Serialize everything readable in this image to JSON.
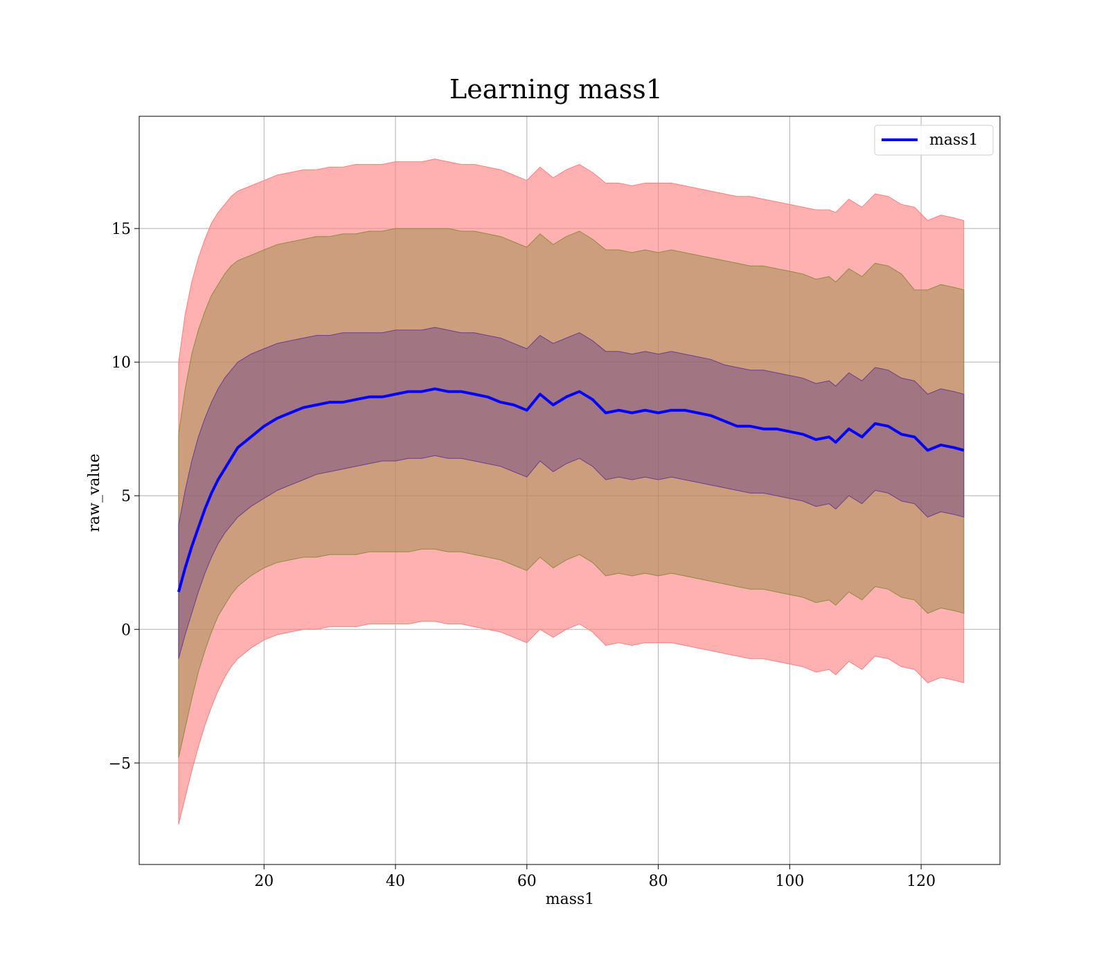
{
  "chart_data": {
    "type": "area",
    "title": "Learning mass1",
    "xlabel": "mass1",
    "ylabel": "raw_value",
    "xlim": [
      1,
      132
    ],
    "ylim": [
      -8.8,
      19.2
    ],
    "xticks": [
      20,
      40,
      60,
      80,
      100,
      120
    ],
    "yticks": [
      -5,
      0,
      5,
      10,
      15
    ],
    "ytick_labels": [
      "−5",
      "0",
      "5",
      "10",
      "15"
    ],
    "grid": true,
    "legend": {
      "position": "upper right",
      "entries": [
        "mass1"
      ]
    },
    "colors": {
      "line": "#0000ff",
      "band_outer": "#ff7f7f",
      "band_middle": "#8f8a40",
      "band_inner": "#6a3d8a",
      "grid": "#b0b0b0"
    },
    "x": [
      7,
      8,
      9,
      10,
      11,
      12,
      13,
      14,
      15,
      16,
      18,
      20,
      22,
      24,
      26,
      28,
      30,
      32,
      34,
      36,
      38,
      40,
      42,
      44,
      46,
      48,
      50,
      52,
      54,
      56,
      58,
      60,
      62,
      64,
      66,
      68,
      70,
      72,
      74,
      76,
      78,
      80,
      82,
      84,
      86,
      88,
      90,
      92,
      94,
      96,
      98,
      100,
      102,
      104,
      106,
      107,
      109,
      111,
      113,
      115,
      117,
      119,
      121,
      123,
      125,
      126.5
    ],
    "series": [
      {
        "name": "mass1",
        "values": [
          1.4,
          2.3,
          3.1,
          3.8,
          4.5,
          5.1,
          5.6,
          6.0,
          6.4,
          6.8,
          7.2,
          7.6,
          7.9,
          8.1,
          8.3,
          8.4,
          8.5,
          8.5,
          8.6,
          8.7,
          8.7,
          8.8,
          8.9,
          8.9,
          9.0,
          8.9,
          8.9,
          8.8,
          8.7,
          8.5,
          8.4,
          8.2,
          8.8,
          8.4,
          8.7,
          8.9,
          8.6,
          8.1,
          8.2,
          8.1,
          8.2,
          8.1,
          8.2,
          8.2,
          8.1,
          8.0,
          7.8,
          7.6,
          7.6,
          7.5,
          7.5,
          7.4,
          7.3,
          7.1,
          7.2,
          7.0,
          7.5,
          7.2,
          7.7,
          7.6,
          7.3,
          7.2,
          6.7,
          6.9,
          6.8,
          6.7
        ]
      }
    ],
    "bands": [
      {
        "level": "outer",
        "upper": [
          10.0,
          11.8,
          13.0,
          13.9,
          14.6,
          15.2,
          15.6,
          15.9,
          16.2,
          16.4,
          16.6,
          16.8,
          17.0,
          17.1,
          17.2,
          17.2,
          17.3,
          17.3,
          17.4,
          17.4,
          17.4,
          17.5,
          17.5,
          17.5,
          17.6,
          17.5,
          17.4,
          17.4,
          17.3,
          17.2,
          17.0,
          16.8,
          17.3,
          16.9,
          17.2,
          17.4,
          17.1,
          16.7,
          16.7,
          16.6,
          16.7,
          16.7,
          16.7,
          16.6,
          16.5,
          16.4,
          16.3,
          16.2,
          16.2,
          16.1,
          16.0,
          15.9,
          15.8,
          15.7,
          15.7,
          15.6,
          16.1,
          15.8,
          16.3,
          16.2,
          15.9,
          15.8,
          15.3,
          15.5,
          15.4,
          15.3
        ]
      },
      {
        "level": "middle",
        "upper": [
          7.3,
          9.0,
          10.3,
          11.2,
          11.9,
          12.5,
          12.9,
          13.3,
          13.6,
          13.8,
          14.0,
          14.2,
          14.4,
          14.5,
          14.6,
          14.7,
          14.7,
          14.8,
          14.8,
          14.9,
          14.9,
          15.0,
          15.0,
          15.0,
          15.0,
          15.0,
          14.9,
          14.9,
          14.8,
          14.7,
          14.5,
          14.3,
          14.8,
          14.4,
          14.7,
          14.9,
          14.6,
          14.2,
          14.2,
          14.1,
          14.2,
          14.1,
          14.2,
          14.1,
          14.0,
          13.9,
          13.8,
          13.7,
          13.6,
          13.6,
          13.5,
          13.4,
          13.3,
          13.1,
          13.2,
          13.0,
          13.5,
          13.2,
          13.7,
          13.6,
          13.3,
          12.7,
          12.7,
          12.9,
          12.8,
          12.7
        ]
      },
      {
        "level": "inner",
        "upper": [
          3.9,
          5.2,
          6.3,
          7.2,
          7.9,
          8.5,
          9.0,
          9.4,
          9.7,
          10.0,
          10.3,
          10.5,
          10.7,
          10.8,
          10.9,
          11.0,
          11.0,
          11.1,
          11.1,
          11.1,
          11.1,
          11.2,
          11.2,
          11.2,
          11.3,
          11.2,
          11.1,
          11.1,
          11.0,
          10.9,
          10.7,
          10.5,
          11.0,
          10.7,
          10.9,
          11.1,
          10.8,
          10.4,
          10.4,
          10.3,
          10.4,
          10.3,
          10.4,
          10.3,
          10.2,
          10.1,
          9.9,
          9.8,
          9.7,
          9.7,
          9.6,
          9.5,
          9.4,
          9.2,
          9.3,
          9.1,
          9.6,
          9.3,
          9.8,
          9.7,
          9.4,
          9.3,
          8.8,
          9.0,
          8.9,
          8.8
        ]
      },
      {
        "level": "inner",
        "lower": [
          -1.1,
          -0.2,
          0.6,
          1.4,
          2.1,
          2.7,
          3.2,
          3.6,
          3.9,
          4.2,
          4.6,
          4.9,
          5.2,
          5.4,
          5.6,
          5.8,
          5.9,
          6.0,
          6.1,
          6.2,
          6.3,
          6.3,
          6.4,
          6.4,
          6.5,
          6.4,
          6.4,
          6.3,
          6.2,
          6.1,
          5.9,
          5.7,
          6.3,
          5.9,
          6.2,
          6.4,
          6.1,
          5.6,
          5.7,
          5.6,
          5.7,
          5.6,
          5.7,
          5.6,
          5.5,
          5.4,
          5.3,
          5.2,
          5.1,
          5.1,
          5.0,
          4.9,
          4.8,
          4.6,
          4.7,
          4.5,
          5.0,
          4.7,
          5.2,
          5.1,
          4.8,
          4.7,
          4.2,
          4.4,
          4.3,
          4.2
        ]
      },
      {
        "level": "middle",
        "lower": [
          -4.8,
          -3.7,
          -2.6,
          -1.6,
          -0.8,
          -0.1,
          0.5,
          0.9,
          1.3,
          1.6,
          2.0,
          2.3,
          2.5,
          2.6,
          2.7,
          2.7,
          2.8,
          2.8,
          2.8,
          2.9,
          2.9,
          2.9,
          2.9,
          3.0,
          3.0,
          2.9,
          2.9,
          2.8,
          2.7,
          2.6,
          2.4,
          2.2,
          2.7,
          2.3,
          2.6,
          2.8,
          2.5,
          2.0,
          2.1,
          2.0,
          2.1,
          2.0,
          2.1,
          2.0,
          1.9,
          1.8,
          1.7,
          1.6,
          1.5,
          1.5,
          1.4,
          1.3,
          1.2,
          1.0,
          1.1,
          0.9,
          1.4,
          1.1,
          1.6,
          1.5,
          1.2,
          1.1,
          0.6,
          0.8,
          0.7,
          0.6
        ]
      },
      {
        "level": "outer",
        "lower": [
          -7.3,
          -6.3,
          -5.3,
          -4.4,
          -3.6,
          -2.9,
          -2.3,
          -1.8,
          -1.4,
          -1.1,
          -0.7,
          -0.4,
          -0.2,
          -0.1,
          0.0,
          0.0,
          0.1,
          0.1,
          0.1,
          0.2,
          0.2,
          0.2,
          0.2,
          0.3,
          0.3,
          0.2,
          0.2,
          0.1,
          0.0,
          -0.1,
          -0.3,
          -0.5,
          0.0,
          -0.3,
          0.0,
          0.2,
          -0.1,
          -0.6,
          -0.5,
          -0.6,
          -0.5,
          -0.5,
          -0.5,
          -0.6,
          -0.7,
          -0.8,
          -0.9,
          -1.0,
          -1.1,
          -1.1,
          -1.2,
          -1.3,
          -1.4,
          -1.6,
          -1.5,
          -1.7,
          -1.2,
          -1.5,
          -1.0,
          -1.1,
          -1.4,
          -1.5,
          -2.0,
          -1.8,
          -1.9,
          -2.0
        ]
      }
    ]
  }
}
